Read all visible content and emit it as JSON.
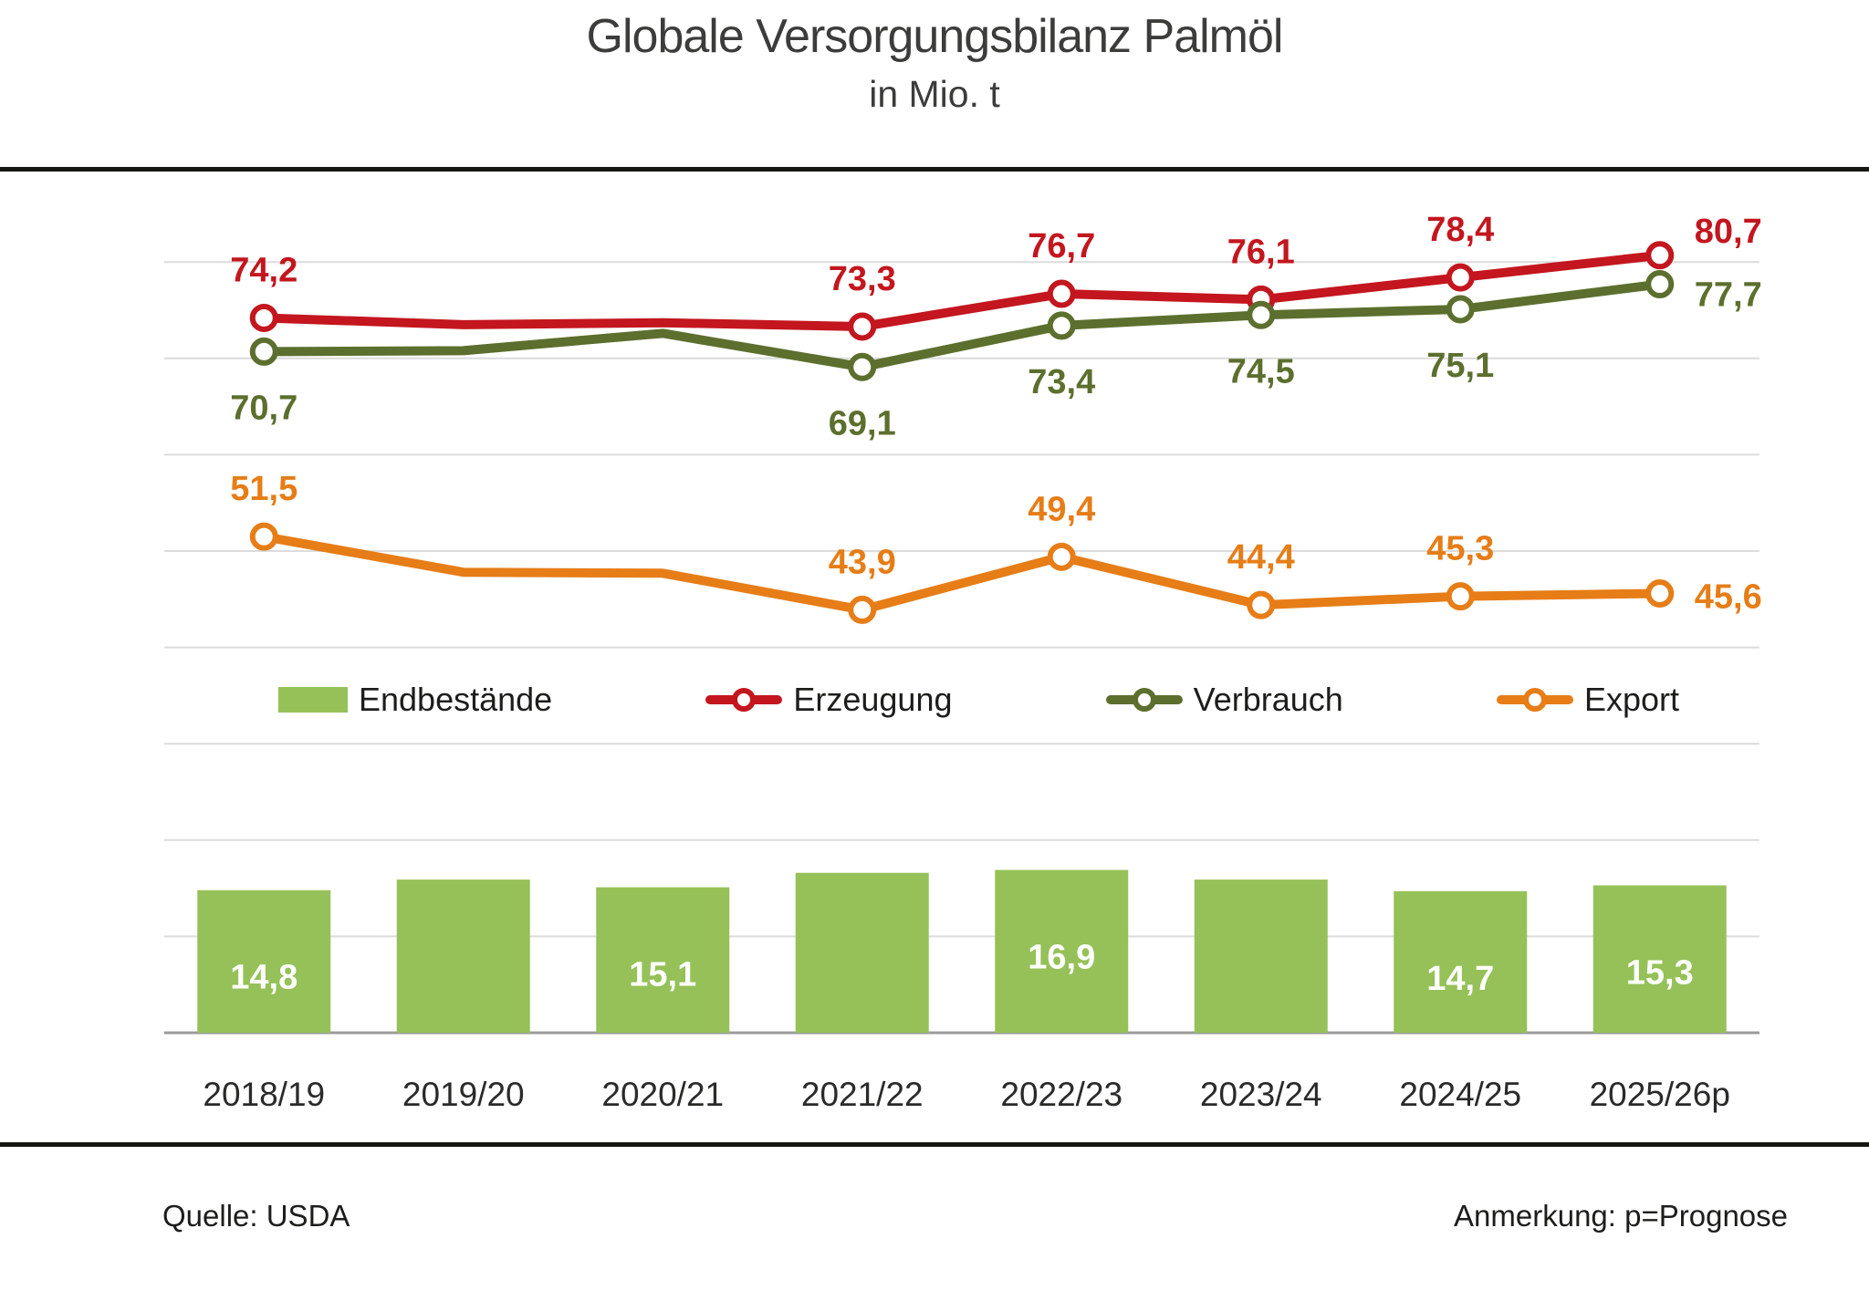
{
  "title": "Globale Versorgungsbilanz Palmöl",
  "subtitle": "in Mio. t",
  "footer": {
    "source": "Quelle: USDA",
    "note": "Anmerkung: p=Prognose"
  },
  "colors": {
    "bar": "#95c158",
    "erzeugung": "#c3161e",
    "verbrauch": "#5c6f2e",
    "export": "#e67d17",
    "grid": "#dcdcdc",
    "baseline": "#9b9b9b",
    "axis_text": "#2a2a29",
    "bar_label": "#ffffff"
  },
  "legend": [
    {
      "label": "Endbestände",
      "type": "bar",
      "color": "#95c158"
    },
    {
      "label": "Erzeugung",
      "type": "line",
      "color": "#c3161e"
    },
    {
      "label": "Verbrauch",
      "type": "line",
      "color": "#5c6f2e"
    },
    {
      "label": "Export",
      "type": "line",
      "color": "#e67d17"
    }
  ],
  "chart_data": {
    "type": "bar",
    "subtype": "combo bar + line, single hidden value axis",
    "title": "Globale Versorgungsbilanz Palmöl",
    "subtitle": "in Mio. t",
    "categories": [
      "2018/19",
      "2019/20",
      "2020/21",
      "2021/22",
      "2022/23",
      "2023/24",
      "2024/25",
      "2025/26p"
    ],
    "ylim": [
      0,
      88
    ],
    "grid_interval": 10,
    "y_tick_labels_shown": false,
    "legend_position": "middle-band",
    "series": [
      {
        "name": "Endbestände",
        "type": "bar",
        "color": "#95c158",
        "values": [
          14.8,
          15.9,
          15.1,
          16.6,
          16.9,
          15.9,
          14.7,
          15.3
        ],
        "labels": [
          "14,8",
          null,
          "15,1",
          null,
          "16,9",
          null,
          "14,7",
          "15,3"
        ]
      },
      {
        "name": "Erzeugung",
        "type": "line",
        "color": "#c3161e",
        "values": [
          74.2,
          73.5,
          73.7,
          73.3,
          76.7,
          76.1,
          78.4,
          80.7
        ],
        "labels": [
          "74,2",
          null,
          null,
          "73,3",
          "76,7",
          "76,1",
          "78,4",
          "80,7"
        ],
        "label_pos": [
          "above",
          null,
          null,
          "above",
          "above",
          "above",
          "above",
          "right-up"
        ]
      },
      {
        "name": "Verbrauch",
        "type": "line",
        "color": "#5c6f2e",
        "values": [
          70.7,
          70.8,
          72.6,
          69.1,
          73.4,
          74.5,
          75.1,
          77.7
        ],
        "labels": [
          "70,7",
          null,
          null,
          "69,1",
          "73,4",
          "74,5",
          "75,1",
          "77,7"
        ],
        "label_pos": [
          "below",
          null,
          null,
          "below",
          "below",
          "below",
          "below",
          "right-down"
        ]
      },
      {
        "name": "Export",
        "type": "line",
        "color": "#e67d17",
        "values": [
          51.5,
          47.8,
          47.7,
          43.9,
          49.4,
          44.4,
          45.3,
          45.6
        ],
        "labels": [
          "51,5",
          null,
          null,
          "43,9",
          "49,4",
          "44,4",
          "45,3",
          "45,6"
        ],
        "label_pos": [
          "above",
          null,
          null,
          "above",
          "above",
          "above",
          "above",
          "right"
        ]
      }
    ]
  }
}
